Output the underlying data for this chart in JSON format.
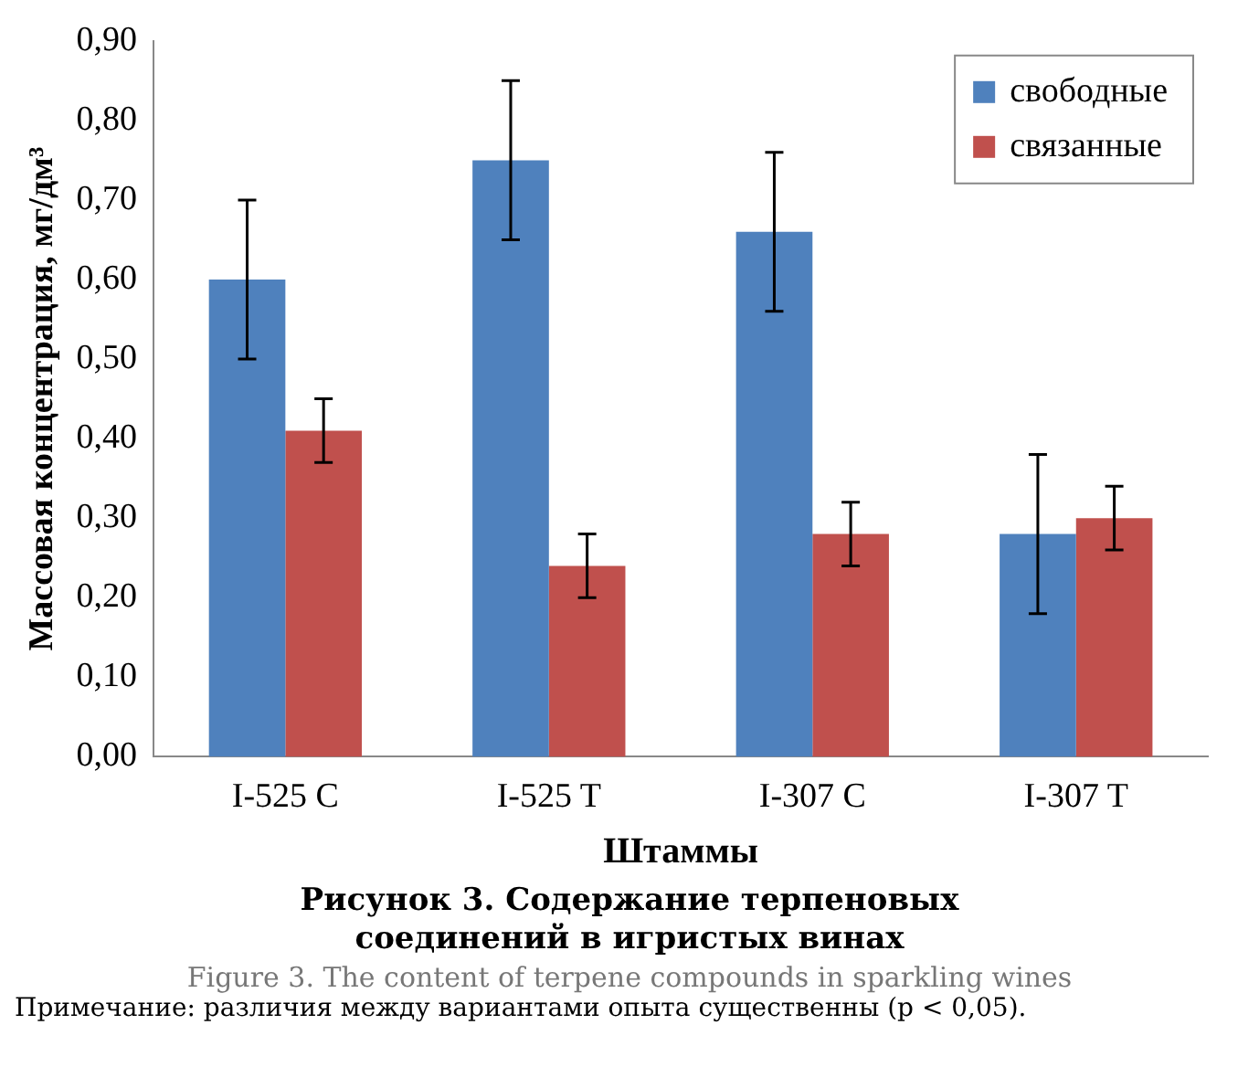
{
  "chart_data": {
    "type": "bar",
    "xlabel": "Штаммы",
    "ylabel": "Массовая концентрация, мг/дм³",
    "categories": [
      "I-525 C",
      "I-525 T",
      "I-307 C",
      "I-307 T"
    ],
    "series": [
      {
        "name": "свободные",
        "color": "#4f81bd",
        "values": [
          0.6,
          0.75,
          0.66,
          0.28
        ],
        "errors": [
          0.1,
          0.1,
          0.1,
          0.1
        ]
      },
      {
        "name": "связанные",
        "color": "#c0504d",
        "values": [
          0.41,
          0.24,
          0.28,
          0.3
        ],
        "errors": [
          0.04,
          0.04,
          0.04,
          0.04
        ]
      }
    ],
    "ylim": [
      0,
      0.9
    ],
    "yticks": [
      {
        "value": 0,
        "label": "0,00"
      },
      {
        "value": 0.1,
        "label": "0,10"
      },
      {
        "value": 0.2,
        "label": "0,20"
      },
      {
        "value": 0.3,
        "label": "0,30"
      },
      {
        "value": 0.4,
        "label": "0,40"
      },
      {
        "value": 0.5,
        "label": "0,50"
      },
      {
        "value": 0.6,
        "label": "0,60"
      },
      {
        "value": 0.7,
        "label": "0,70"
      },
      {
        "value": 0.8,
        "label": "0,80"
      },
      {
        "value": 0.9,
        "label": "0,90"
      }
    ],
    "grid": false,
    "legend": "top right",
    "annotations": [
      "Рисунок 3. Содержание терпеновых соединений в игристых винах",
      "Figure 3. The content of terpene compounds in sparkling wines",
      "Примечание: различия между вариантами опыта существенны (p < 0,05)."
    ]
  }
}
